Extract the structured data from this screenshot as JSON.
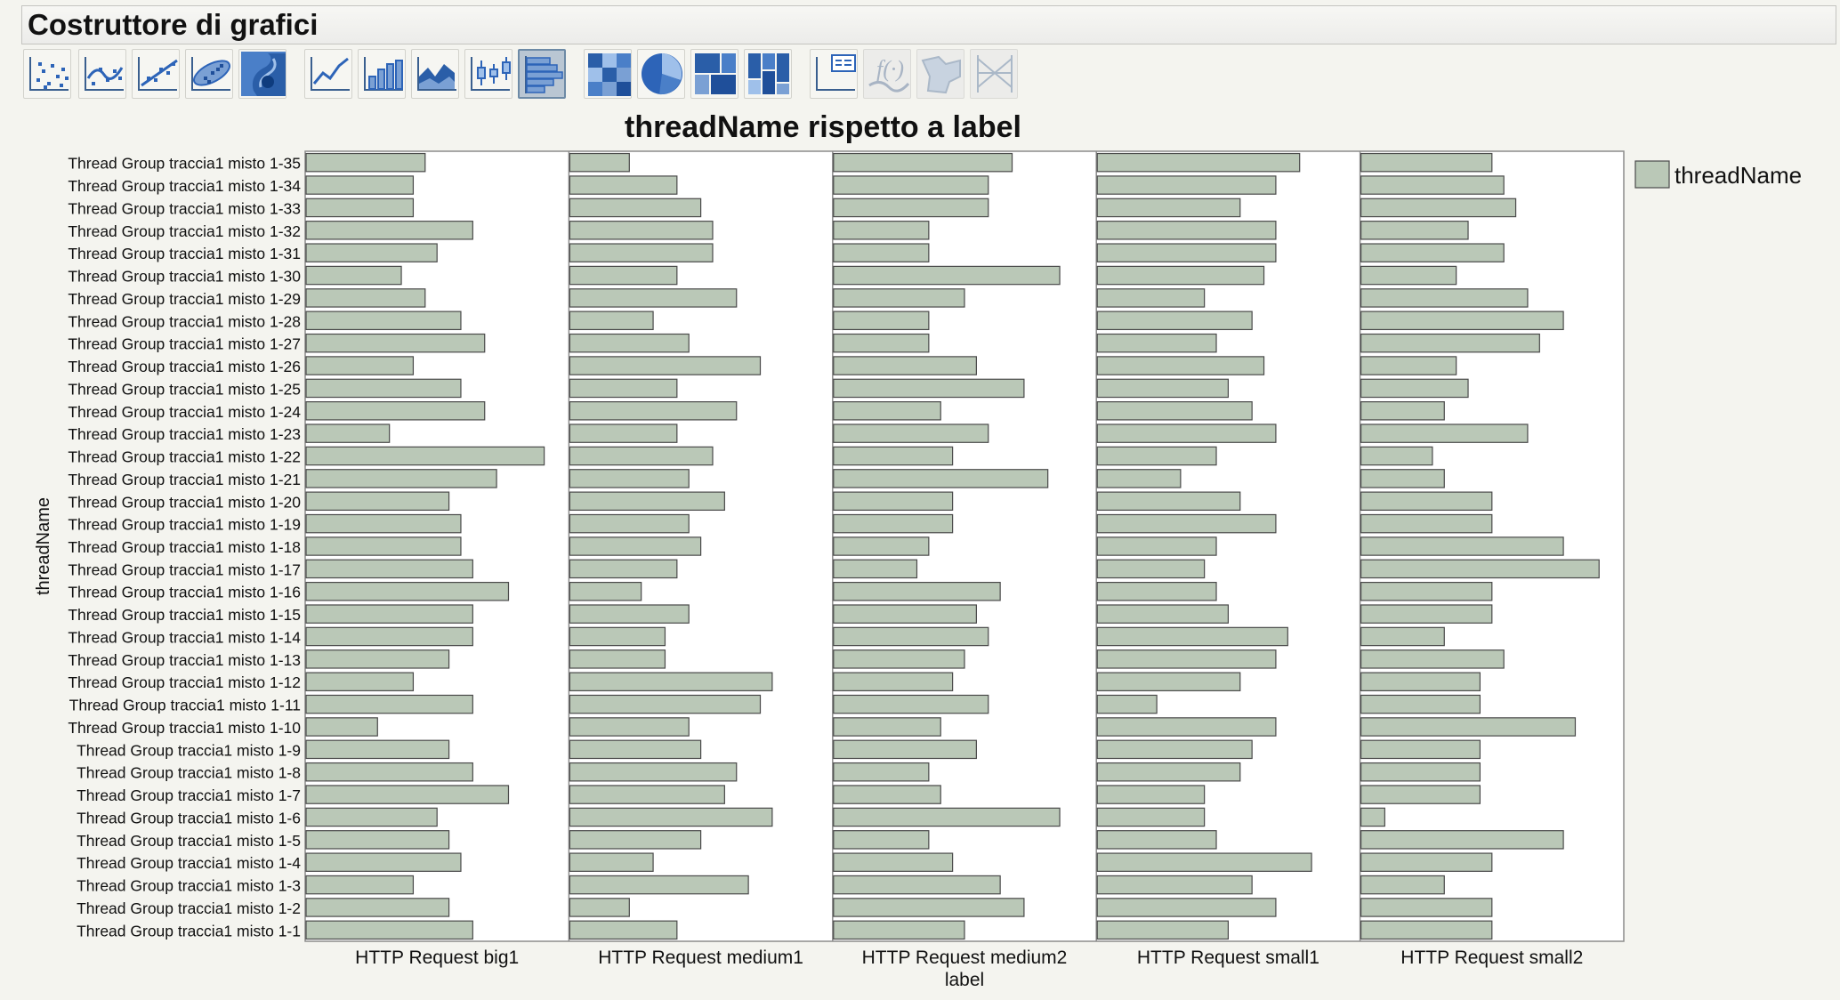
{
  "window": {
    "title": "Costruttore di grafici"
  },
  "toolbar": {
    "tools": [
      {
        "icon": "scatter-points-icon"
      },
      {
        "icon": "smoother-icon"
      },
      {
        "icon": "line-of-fit-icon"
      },
      {
        "icon": "ellipse-icon"
      },
      {
        "icon": "contour-icon"
      },
      {
        "icon": "line-chart-icon"
      },
      {
        "icon": "bar-chart-icon"
      },
      {
        "icon": "area-chart-icon"
      },
      {
        "icon": "box-plot-icon"
      },
      {
        "icon": "histogram-icon",
        "selected": true
      },
      {
        "icon": "heatmap-icon"
      },
      {
        "icon": "pie-chart-icon"
      },
      {
        "icon": "treemap-icon"
      },
      {
        "icon": "mosaic-icon"
      },
      {
        "icon": "caption-box-icon"
      },
      {
        "icon": "formula-icon",
        "disabled": true
      },
      {
        "icon": "map-shapes-icon",
        "disabled": true
      },
      {
        "icon": "parallel-plot-icon",
        "disabled": true
      }
    ]
  },
  "chart_data": {
    "type": "bar",
    "orientation": "horizontal",
    "title": "threadName rispetto a label",
    "xlabel": "label",
    "ylabel": "threadName",
    "legend": {
      "position": "right",
      "entries": [
        "threadName"
      ]
    },
    "bar_color": "#bac8b7",
    "grid": false,
    "categories": [
      "Thread Group traccia1 misto 1-35",
      "Thread Group traccia1 misto 1-34",
      "Thread Group traccia1 misto 1-33",
      "Thread Group traccia1 misto 1-32",
      "Thread Group traccia1 misto 1-31",
      "Thread Group traccia1 misto 1-30",
      "Thread Group traccia1 misto 1-29",
      "Thread Group traccia1 misto 1-28",
      "Thread Group traccia1 misto 1-27",
      "Thread Group traccia1 misto 1-26",
      "Thread Group traccia1 misto 1-25",
      "Thread Group traccia1 misto 1-24",
      "Thread Group traccia1 misto 1-23",
      "Thread Group traccia1 misto 1-22",
      "Thread Group traccia1 misto 1-21",
      "Thread Group traccia1 misto 1-20",
      "Thread Group traccia1 misto 1-19",
      "Thread Group traccia1 misto 1-18",
      "Thread Group traccia1 misto 1-17",
      "Thread Group traccia1 misto 1-16",
      "Thread Group traccia1 misto 1-15",
      "Thread Group traccia1 misto 1-14",
      "Thread Group traccia1 misto 1-13",
      "Thread Group traccia1 misto 1-12",
      "Thread Group traccia1 misto 1-11",
      "Thread Group traccia1 misto 1-10",
      "Thread Group traccia1 misto 1-9",
      "Thread Group traccia1 misto 1-8",
      "Thread Group traccia1 misto 1-7",
      "Thread Group traccia1 misto 1-6",
      "Thread Group traccia1 misto 1-5",
      "Thread Group traccia1 misto 1-4",
      "Thread Group traccia1 misto 1-3",
      "Thread Group traccia1 misto 1-2",
      "Thread Group traccia1 misto 1-1"
    ],
    "panels": [
      {
        "label": "HTTP Request big1",
        "values": [
          10,
          9,
          9,
          14,
          11,
          8,
          10,
          13,
          15,
          9,
          13,
          15,
          7,
          20,
          16,
          12,
          13,
          13,
          14,
          17,
          14,
          14,
          12,
          9,
          14,
          6,
          12,
          14,
          17,
          11,
          12,
          13,
          9,
          12,
          14
        ]
      },
      {
        "label": "HTTP Request medium1",
        "values": [
          5,
          9,
          11,
          12,
          12,
          9,
          14,
          7,
          10,
          16,
          9,
          14,
          9,
          12,
          10,
          13,
          10,
          11,
          9,
          6,
          10,
          8,
          8,
          17,
          16,
          10,
          11,
          14,
          13,
          17,
          11,
          7,
          15,
          5,
          9
        ]
      },
      {
        "label": "HTTP Request medium2",
        "values": [
          15,
          13,
          13,
          8,
          8,
          19,
          11,
          8,
          8,
          12,
          16,
          9,
          13,
          10,
          18,
          10,
          10,
          8,
          7,
          14,
          12,
          13,
          11,
          10,
          13,
          9,
          12,
          8,
          9,
          19,
          8,
          10,
          14,
          16,
          11
        ]
      },
      {
        "label": "HTTP Request small1",
        "values": [
          17,
          15,
          12,
          15,
          15,
          14,
          9,
          13,
          10,
          14,
          11,
          13,
          15,
          10,
          7,
          12,
          15,
          10,
          9,
          10,
          11,
          16,
          15,
          12,
          5,
          15,
          13,
          12,
          9,
          9,
          10,
          18,
          13,
          15,
          11
        ]
      },
      {
        "label": "HTTP Request small2",
        "values": [
          11,
          12,
          13,
          9,
          12,
          8,
          14,
          17,
          15,
          8,
          9,
          7,
          14,
          6,
          7,
          11,
          11,
          17,
          20,
          11,
          11,
          7,
          12,
          10,
          10,
          18,
          10,
          10,
          10,
          2,
          17,
          11,
          7,
          11,
          11
        ]
      }
    ],
    "xlim": [
      0,
      22
    ]
  }
}
